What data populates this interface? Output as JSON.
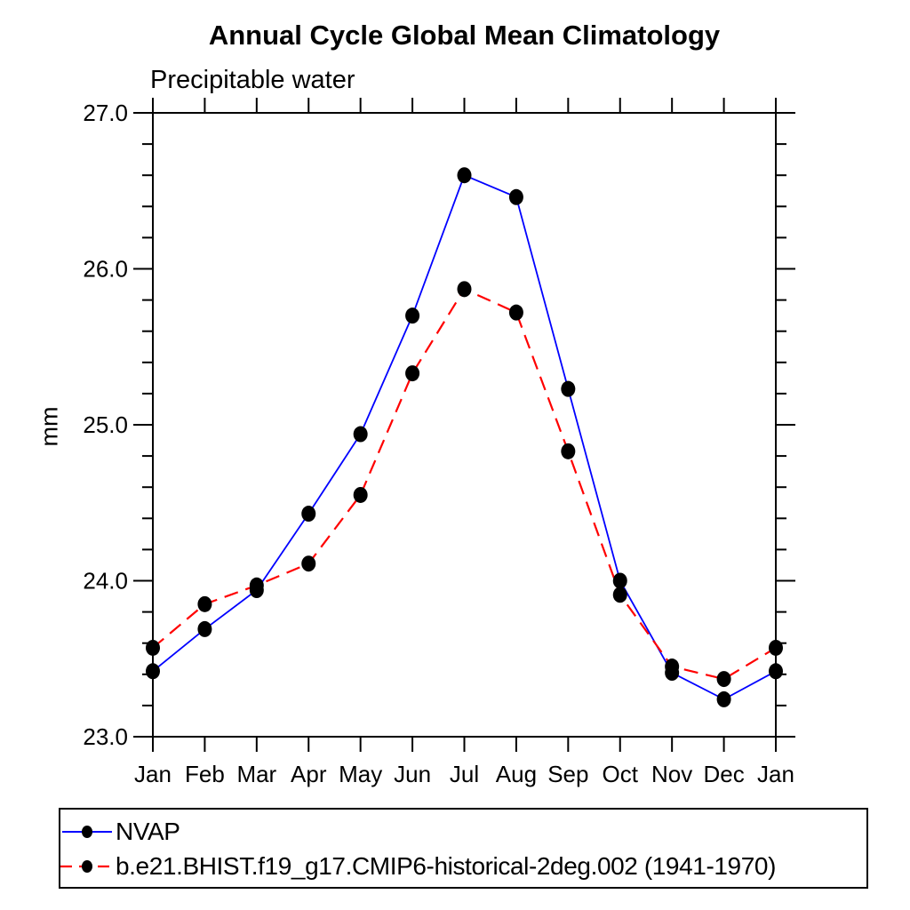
{
  "page": {
    "background": "#ffffff"
  },
  "chart_data": {
    "type": "line",
    "title": "Annual Cycle Global Mean Climatology",
    "subtitle": "Precipitable water",
    "ylabel": "mm",
    "xlabel": "",
    "x_categories": [
      "Jan",
      "Feb",
      "Mar",
      "Apr",
      "May",
      "Jun",
      "Jul",
      "Aug",
      "Sep",
      "Oct",
      "Nov",
      "Dec",
      "Jan"
    ],
    "ylim": [
      23.0,
      27.0
    ],
    "yticks_major": {
      "values": [
        23.0,
        24.0,
        25.0,
        26.0,
        27.0
      ],
      "labels": [
        "23.0",
        "24.0",
        "25.0",
        "26.0",
        "27.0"
      ]
    },
    "ytick_minor_step": 0.2,
    "grid": false,
    "axis_color": "#000000",
    "tick_direction": "outward",
    "marker": {
      "shape": "filled-circle",
      "color": "#000000"
    },
    "legend_position": "bottom-left-box",
    "series": [
      {
        "name": "NVAP",
        "color": "#0000ff",
        "line_style": "solid",
        "values": [
          23.42,
          23.69,
          23.94,
          24.43,
          24.94,
          25.7,
          26.6,
          26.46,
          25.23,
          24.0,
          23.41,
          23.24,
          23.42
        ]
      },
      {
        "name": "b.e21.BHIST.f19_g17.CMIP6-historical-2deg.002 (1941-1970)",
        "color": "#ff0000",
        "line_style": "dashed",
        "values": [
          23.57,
          23.85,
          23.97,
          24.11,
          24.55,
          25.33,
          25.87,
          25.72,
          24.83,
          23.91,
          23.45,
          23.37,
          23.57
        ]
      }
    ]
  }
}
